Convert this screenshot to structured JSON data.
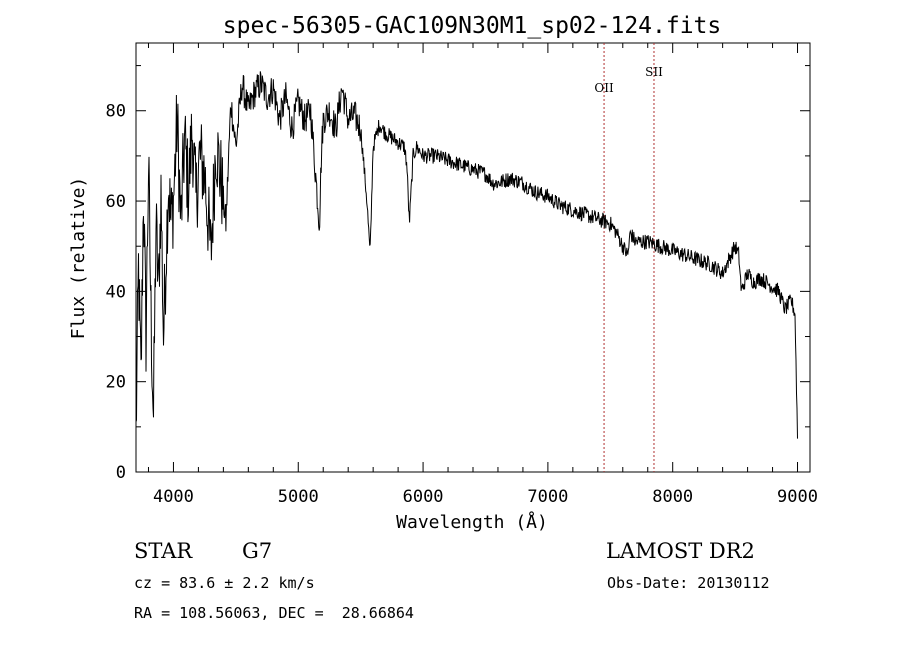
{
  "chart_data": {
    "type": "line",
    "title": "spec-56305-GAC109N30M1_sp02-124.fits",
    "xlabel": "Wavelength (Å)",
    "ylabel": "Flux (relative)",
    "xlim": [
      3700,
      9100
    ],
    "ylim": [
      0,
      95
    ],
    "xticks": [
      4000,
      5000,
      6000,
      7000,
      8000,
      9000
    ],
    "yticks": [
      0,
      20,
      40,
      60,
      80
    ],
    "grid": false,
    "series": [
      {
        "x": [
          3700,
          3720,
          3740,
          3760,
          3780,
          3800,
          3820,
          3840,
          3860,
          3880,
          3900,
          3920,
          3940,
          3960,
          3980,
          4000,
          4030,
          4060,
          4090,
          4120,
          4150,
          4180,
          4210,
          4250,
          4300,
          4340,
          4380,
          4420,
          4460,
          4500,
          4550,
          4600,
          4650,
          4700,
          4750,
          4800,
          4850,
          4900,
          4950,
          5000,
          5050,
          5100,
          5150,
          5170,
          5185,
          5200,
          5250,
          5300,
          5350,
          5400,
          5450,
          5500,
          5550,
          5575,
          5600,
          5650,
          5700,
          5750,
          5800,
          5850,
          5870,
          5890,
          5920,
          5950,
          6000,
          6100,
          6200,
          6300,
          6400,
          6500,
          6560,
          6600,
          6700,
          6800,
          6900,
          7000,
          7100,
          7200,
          7300,
          7400,
          7500,
          7550,
          7600,
          7640,
          7660,
          7700,
          7800,
          7900,
          8000,
          8100,
          8200,
          8300,
          8400,
          8450,
          8500,
          8530,
          8550,
          8600,
          8650,
          8700,
          8750,
          8800,
          8850,
          8900,
          8950,
          8980,
          9000
        ],
        "y": [
          8,
          45,
          20,
          62,
          30,
          68,
          35,
          12,
          55,
          40,
          62,
          30,
          48,
          65,
          55,
          60,
          78,
          55,
          74,
          62,
          76,
          60,
          70,
          66,
          48,
          73,
          65,
          55,
          82,
          72,
          86,
          80,
          84,
          86,
          83,
          85,
          78,
          83,
          76,
          82,
          78,
          80,
          62,
          55,
          70,
          78,
          80,
          76,
          85,
          78,
          79,
          76,
          60,
          48,
          72,
          77,
          75,
          74,
          73,
          72,
          68,
          55,
          70,
          72,
          70,
          70,
          69,
          68,
          67,
          66,
          64,
          64,
          65,
          64,
          62,
          61,
          59,
          58,
          57,
          56,
          55,
          53,
          50,
          48,
          53,
          51,
          51,
          50,
          49,
          48,
          47,
          46,
          44,
          47,
          50,
          48,
          40,
          44,
          42,
          43,
          42,
          41,
          40,
          36,
          38,
          35,
          8
        ]
      }
    ],
    "annotations": [
      {
        "label": "OII",
        "x": 7450
      },
      {
        "label": "SII",
        "x": 7850
      }
    ]
  },
  "info": {
    "object_type": "STAR",
    "subclass": "G7",
    "survey": "LAMOST DR2",
    "redshift": "cz = 83.6 ± 2.2 km/s",
    "obs_date": "Obs-Date: 20130112",
    "coords": "RA = 108.56063, DEC =  28.66864"
  }
}
